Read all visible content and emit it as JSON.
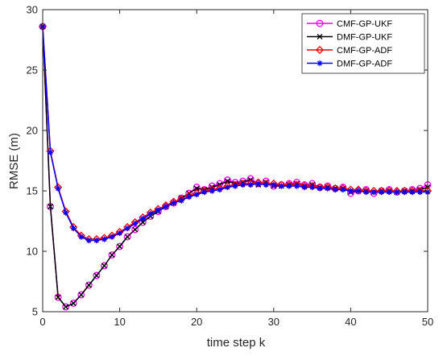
{
  "chart_data": {
    "type": "line",
    "xlabel": "time step k",
    "ylabel": "RMSE (m)",
    "xlim": [
      0,
      50
    ],
    "ylim": [
      5,
      30
    ],
    "xticks": [
      0,
      10,
      20,
      30,
      40,
      50
    ],
    "yticks": [
      5,
      10,
      15,
      20,
      25,
      30
    ],
    "grid": false,
    "legend_position": "top-right",
    "x": [
      0,
      1,
      2,
      3,
      4,
      5,
      6,
      7,
      8,
      9,
      10,
      11,
      12,
      13,
      14,
      15,
      16,
      17,
      18,
      19,
      20,
      21,
      22,
      23,
      24,
      25,
      26,
      27,
      28,
      29,
      30,
      31,
      32,
      33,
      34,
      35,
      36,
      37,
      38,
      39,
      40,
      41,
      42,
      43,
      44,
      45,
      46,
      47,
      48,
      49,
      50
    ],
    "series": [
      {
        "name": "CMF-GP-UKF",
        "color": "#ff00ff",
        "marker": "circle",
        "values": [
          28.6,
          13.7,
          6.2,
          5.4,
          5.7,
          6.4,
          7.2,
          8.0,
          8.8,
          9.7,
          10.4,
          11.2,
          11.8,
          12.4,
          12.9,
          13.3,
          13.7,
          14.0,
          14.4,
          14.8,
          15.3,
          15.1,
          15.4,
          15.6,
          15.9,
          15.7,
          15.8,
          16.0,
          15.6,
          15.8,
          15.4,
          15.5,
          15.6,
          15.7,
          15.5,
          15.6,
          15.3,
          15.4,
          15.2,
          15.3,
          14.8,
          15.0,
          15.1,
          14.8,
          15.0,
          15.1,
          14.9,
          15.0,
          15.1,
          15.2,
          15.5
        ]
      },
      {
        "name": "DMF-GP-UKF",
        "color": "#000000",
        "marker": "x",
        "values": [
          28.6,
          13.7,
          6.2,
          5.4,
          5.7,
          6.4,
          7.2,
          8.0,
          8.8,
          9.7,
          10.4,
          11.2,
          11.8,
          12.4,
          12.9,
          13.3,
          13.7,
          14.0,
          14.4,
          14.8,
          15.2,
          15.1,
          15.3,
          15.5,
          15.8,
          15.6,
          15.7,
          15.9,
          15.5,
          15.7,
          15.4,
          15.4,
          15.5,
          15.6,
          15.4,
          15.5,
          15.3,
          15.3,
          15.2,
          15.2,
          14.9,
          15.0,
          15.0,
          14.9,
          15.0,
          15.0,
          14.9,
          15.0,
          15.0,
          15.1,
          15.3
        ]
      },
      {
        "name": "CMF-GP-ADF",
        "color": "#ff0000",
        "marker": "diamond",
        "values": [
          28.6,
          18.3,
          15.3,
          13.3,
          12.0,
          11.3,
          11.0,
          11.0,
          11.1,
          11.3,
          11.6,
          12.0,
          12.4,
          12.8,
          13.2,
          13.5,
          13.8,
          14.1,
          14.3,
          14.6,
          14.8,
          15.0,
          15.1,
          15.2,
          15.4,
          15.5,
          15.6,
          15.6,
          15.7,
          15.6,
          15.6,
          15.5,
          15.5,
          15.5,
          15.4,
          15.4,
          15.3,
          15.3,
          15.2,
          15.2,
          15.1,
          15.1,
          15.0,
          15.0,
          15.0,
          15.0,
          15.0,
          15.0,
          15.0,
          15.0,
          15.0
        ]
      },
      {
        "name": "DMF-GP-ADF",
        "color": "#0000ff",
        "marker": "asterisk",
        "values": [
          28.6,
          18.2,
          15.2,
          13.2,
          11.9,
          11.2,
          10.9,
          10.9,
          11.0,
          11.2,
          11.5,
          11.9,
          12.3,
          12.7,
          13.1,
          13.4,
          13.7,
          14.0,
          14.2,
          14.5,
          14.7,
          14.9,
          15.0,
          15.1,
          15.3,
          15.4,
          15.5,
          15.5,
          15.6,
          15.5,
          15.5,
          15.4,
          15.4,
          15.4,
          15.3,
          15.3,
          15.2,
          15.2,
          15.1,
          15.1,
          15.0,
          15.0,
          14.9,
          14.9,
          14.9,
          14.9,
          14.9,
          14.9,
          14.9,
          14.9,
          14.9
        ]
      }
    ]
  }
}
